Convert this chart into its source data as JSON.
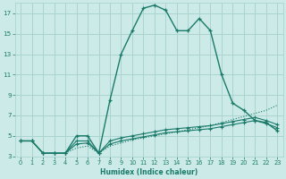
{
  "xlabel": "Humidex (Indice chaleur)",
  "x_values": [
    0,
    1,
    2,
    3,
    4,
    5,
    6,
    7,
    8,
    9,
    10,
    11,
    12,
    13,
    14,
    15,
    16,
    17,
    18,
    19,
    20,
    21,
    22,
    23
  ],
  "series_main": [
    4.5,
    4.5,
    3.3,
    3.3,
    3.3,
    5.0,
    5.0,
    3.3,
    8.5,
    13.0,
    15.3,
    17.5,
    17.8,
    17.3,
    15.3,
    15.3,
    16.5,
    15.3,
    11.0,
    8.2,
    7.5,
    6.5,
    6.3,
    5.5
  ],
  "series_dotted": [
    4.5,
    4.5,
    3.3,
    3.3,
    3.3,
    3.8,
    4.0,
    3.3,
    4.0,
    4.3,
    4.6,
    4.8,
    5.0,
    5.2,
    5.4,
    5.6,
    5.8,
    6.0,
    6.3,
    6.6,
    6.9,
    7.2,
    7.5,
    8.0
  ],
  "series_mid1": [
    4.5,
    4.5,
    3.3,
    3.3,
    3.3,
    4.5,
    4.5,
    3.3,
    4.5,
    4.8,
    5.0,
    5.2,
    5.4,
    5.6,
    5.7,
    5.8,
    5.9,
    6.0,
    6.2,
    6.4,
    6.6,
    6.8,
    6.5,
    6.1
  ],
  "series_mid2": [
    4.5,
    4.5,
    3.3,
    3.3,
    3.3,
    4.2,
    4.3,
    3.3,
    4.2,
    4.5,
    4.7,
    4.9,
    5.1,
    5.3,
    5.4,
    5.5,
    5.6,
    5.7,
    5.9,
    6.1,
    6.3,
    6.5,
    6.2,
    5.8
  ],
  "line_color": "#1a7a6a",
  "bg_color": "#cceae7",
  "grid_color": "#aad4d0",
  "ylim": [
    3,
    18
  ],
  "xlim": [
    -0.5,
    23.5
  ],
  "yticks": [
    3,
    5,
    7,
    9,
    11,
    13,
    15,
    17
  ],
  "xticks": [
    0,
    1,
    2,
    3,
    4,
    5,
    6,
    7,
    8,
    9,
    10,
    11,
    12,
    13,
    14,
    15,
    16,
    17,
    18,
    19,
    20,
    21,
    22,
    23
  ]
}
